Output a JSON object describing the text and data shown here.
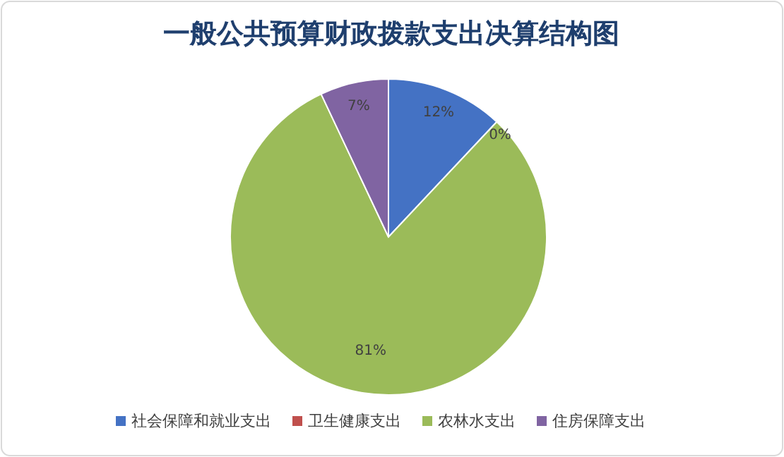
{
  "chart_data": {
    "type": "pie",
    "title": "一般公共预算财政拨款支出决算结构图",
    "categories": [
      "社会保障和就业支出",
      "卫生健康支出",
      "农林水支出",
      "住房保障支出"
    ],
    "values": [
      12,
      0,
      81,
      7
    ],
    "value_labels": [
      "12%",
      "0%",
      "81%",
      "7%"
    ],
    "colors": [
      "#4472c4",
      "#c0504d",
      "#9bbb59",
      "#8064a2"
    ],
    "legend": "bottom"
  }
}
